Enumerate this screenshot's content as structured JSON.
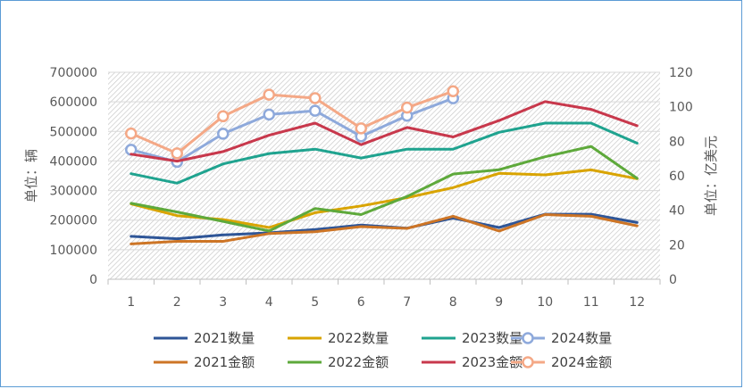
{
  "chart_data": {
    "type": "line",
    "title": "",
    "x": [
      1,
      2,
      3,
      4,
      5,
      6,
      7,
      8,
      9,
      10,
      11,
      12
    ],
    "x_tick_labels": [
      "1",
      "2",
      "3",
      "4",
      "5",
      "6",
      "7",
      "8",
      "9",
      "10",
      "11",
      "12"
    ],
    "y_left": {
      "label": "单位：辆",
      "lim": [
        0,
        700000
      ],
      "ticks": [
        0,
        100000,
        200000,
        300000,
        400000,
        500000,
        600000,
        700000
      ],
      "tick_labels": [
        "0",
        "100000",
        "200000",
        "300000",
        "400000",
        "500000",
        "600000",
        "700000"
      ]
    },
    "y_right": {
      "label": "单位：亿美元",
      "lim": [
        0,
        120
      ],
      "ticks": [
        0,
        20,
        40,
        60,
        80,
        100,
        120
      ],
      "tick_labels": [
        "0",
        "20",
        "40",
        "60",
        "80",
        "100",
        "120"
      ]
    },
    "grid": true,
    "legend_position": "bottom",
    "series": [
      {
        "name": "2021数量",
        "axis": "left",
        "color": "#2e5597",
        "marker": false,
        "values": [
          145000,
          137000,
          150000,
          157000,
          168000,
          183000,
          173000,
          207000,
          175000,
          220000,
          220000,
          192000
        ]
      },
      {
        "name": "2022数量",
        "axis": "left",
        "color": "#d9a400",
        "marker": false,
        "values": [
          255000,
          215000,
          202000,
          175000,
          225000,
          248000,
          276000,
          310000,
          358000,
          353000,
          370000,
          340000
        ]
      },
      {
        "name": "2023数量",
        "axis": "left",
        "color": "#1fa38f",
        "marker": false,
        "values": [
          357000,
          325000,
          390000,
          425000,
          440000,
          410000,
          440000,
          440000,
          497000,
          528000,
          528000,
          460000
        ]
      },
      {
        "name": "2024数量",
        "axis": "left",
        "color": "#8ea9db",
        "marker": true,
        "values": [
          438000,
          397000,
          492000,
          557000,
          570000,
          483000,
          553000,
          612000,
          null,
          null,
          null,
          null
        ]
      },
      {
        "name": "2021金额",
        "axis": "right",
        "color": "#cd7526",
        "marker": false,
        "values": [
          20.5,
          22,
          22,
          26.5,
          27.5,
          30.5,
          29.5,
          36.5,
          28,
          37.5,
          36.5,
          31
        ]
      },
      {
        "name": "2022金额",
        "axis": "right",
        "color": "#5ea93b",
        "marker": false,
        "values": [
          44,
          39,
          33.5,
          28,
          41,
          37.5,
          48,
          61,
          63.5,
          71,
          77,
          58.5
        ]
      },
      {
        "name": "2023金额",
        "axis": "right",
        "color": "#c8384c",
        "marker": false,
        "values": [
          72.5,
          68.5,
          74,
          83.5,
          90.5,
          78,
          88,
          82.5,
          92,
          103,
          98.5,
          89
        ]
      },
      {
        "name": "2024金额",
        "axis": "right",
        "color": "#f4a886",
        "marker": true,
        "values": [
          84.5,
          73,
          94.5,
          107,
          105,
          87.5,
          99.5,
          109,
          null,
          null,
          null,
          null
        ]
      }
    ]
  }
}
